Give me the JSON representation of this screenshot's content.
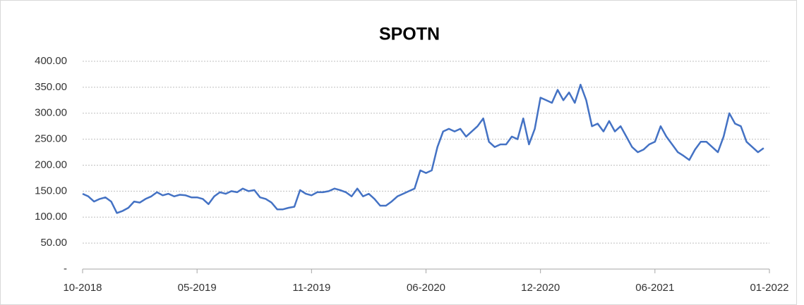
{
  "chart_data": {
    "type": "line",
    "title": "SPOTN",
    "categories": [
      "10-2018",
      null,
      null,
      null,
      null,
      null,
      null,
      null,
      null,
      null,
      null,
      null,
      null,
      null,
      null,
      null,
      null,
      null,
      null,
      null,
      "05-2019",
      null,
      null,
      null,
      null,
      null,
      null,
      null,
      null,
      null,
      null,
      null,
      null,
      null,
      null,
      null,
      null,
      null,
      null,
      null,
      "11-2019",
      null,
      null,
      null,
      null,
      null,
      null,
      null,
      null,
      null,
      null,
      null,
      null,
      null,
      null,
      null,
      null,
      null,
      null,
      null,
      "06-2020",
      null,
      null,
      null,
      null,
      null,
      null,
      null,
      null,
      null,
      null,
      null,
      null,
      null,
      null,
      null,
      null,
      null,
      null,
      null,
      "12-2020",
      null,
      null,
      null,
      null,
      null,
      null,
      null,
      null,
      null,
      null,
      null,
      null,
      null,
      null,
      null,
      null,
      null,
      null,
      null,
      "06-2021",
      null,
      null,
      null,
      null,
      null,
      null,
      null,
      null,
      null,
      null,
      null,
      null,
      null,
      null,
      null,
      null,
      null,
      null,
      null,
      "01-2022"
    ],
    "series": [
      {
        "name": "SPOTN",
        "color": "#4472c4",
        "values": [
          145,
          140,
          130,
          135,
          138,
          130,
          108,
          112,
          118,
          130,
          128,
          135,
          140,
          148,
          142,
          145,
          140,
          143,
          142,
          138,
          138,
          135,
          125,
          140,
          148,
          145,
          150,
          148,
          155,
          150,
          152,
          138,
          135,
          128,
          115,
          115,
          118,
          120,
          152,
          145,
          142,
          148,
          148,
          150,
          155,
          152,
          148,
          140,
          155,
          140,
          145,
          135,
          122,
          122,
          130,
          140,
          145,
          150,
          155,
          190,
          185,
          190,
          235,
          265,
          270,
          265,
          270,
          255,
          265,
          275,
          290,
          245,
          235,
          240,
          240,
          255,
          250,
          290,
          240,
          270,
          330,
          325,
          320,
          345,
          325,
          340,
          320,
          355,
          325,
          275,
          280,
          265,
          285,
          265,
          275,
          255,
          235,
          225,
          230,
          240,
          245,
          275,
          255,
          240,
          225,
          218,
          210,
          230,
          245,
          245,
          235,
          225,
          255,
          300,
          280,
          275,
          245,
          235,
          225,
          233,
          null
        ]
      }
    ],
    "ylim": [
      0,
      400
    ],
    "yticks": [
      {
        "value": 0,
        "label": "-"
      },
      {
        "value": 50,
        "label": "50.00"
      },
      {
        "value": 100,
        "label": "100.00"
      },
      {
        "value": 150,
        "label": "150.00"
      },
      {
        "value": 200,
        "label": "200.00"
      },
      {
        "value": 250,
        "label": "250.00"
      },
      {
        "value": 300,
        "label": "300.00"
      },
      {
        "value": 350,
        "label": "350.00"
      },
      {
        "value": 400,
        "label": "400.00"
      }
    ],
    "grid": true
  }
}
